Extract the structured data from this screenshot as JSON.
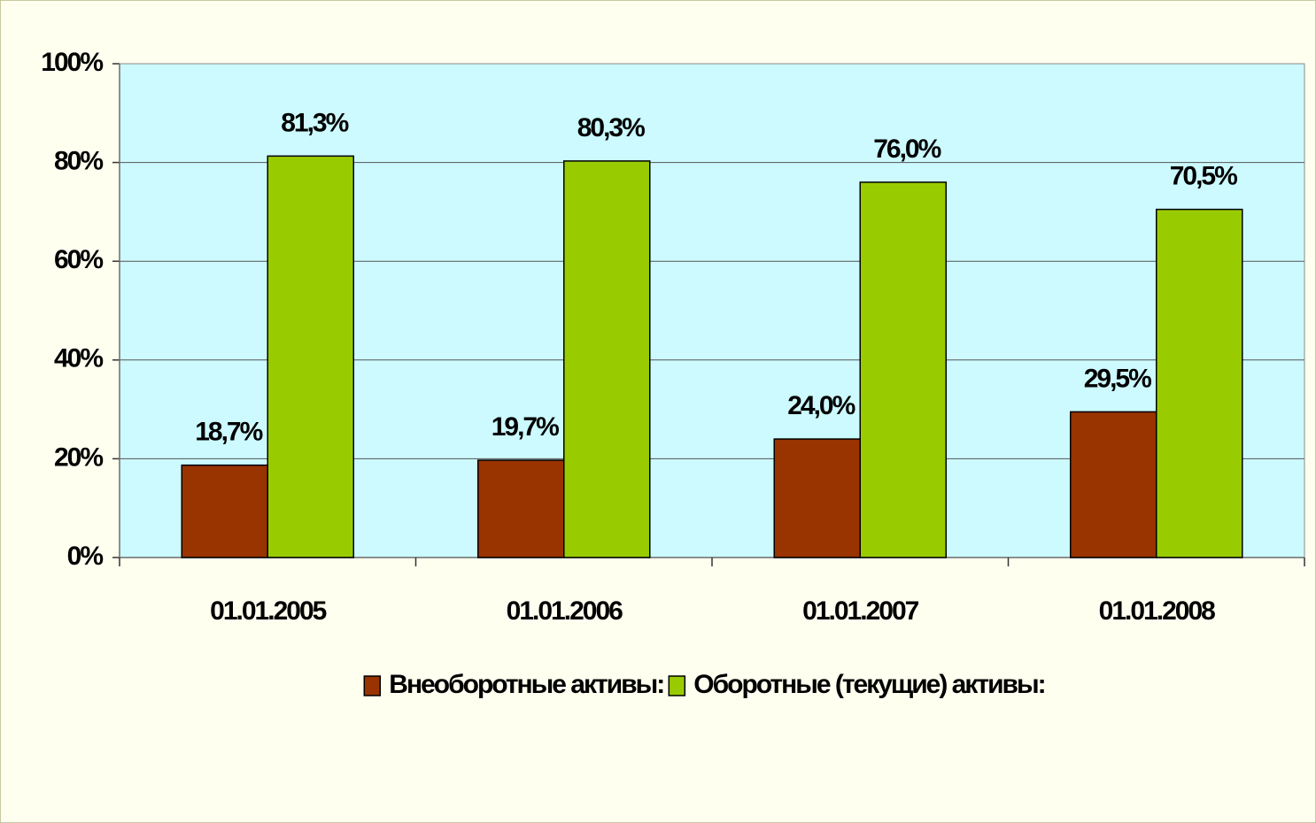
{
  "chart_data": {
    "type": "bar",
    "categories": [
      "01.01.2005",
      "01.01.2006",
      "01.01.2007",
      "01.01.2008"
    ],
    "series": [
      {
        "name": "Внеоборотные активы:",
        "color": "#993300",
        "values": [
          18.7,
          19.7,
          24.0,
          29.5
        ],
        "value_labels": [
          "18,7%",
          "19,7%",
          "24,0%",
          "29,5%"
        ]
      },
      {
        "name": "Оборотные (текущие) активы:",
        "color": "#99cc00",
        "values": [
          81.3,
          80.3,
          76.0,
          70.5
        ],
        "value_labels": [
          "81,3%",
          "80,3%",
          "76,0%",
          "70,5%"
        ]
      }
    ],
    "ylim": [
      0,
      100
    ],
    "yticks": [
      {
        "value": 0,
        "label": "0%"
      },
      {
        "value": 20,
        "label": "20%"
      },
      {
        "value": 40,
        "label": "40%"
      },
      {
        "value": 60,
        "label": "60%"
      },
      {
        "value": 80,
        "label": "80%"
      },
      {
        "value": 100,
        "label": "100%"
      }
    ],
    "grid": true,
    "legend": "bottom"
  }
}
